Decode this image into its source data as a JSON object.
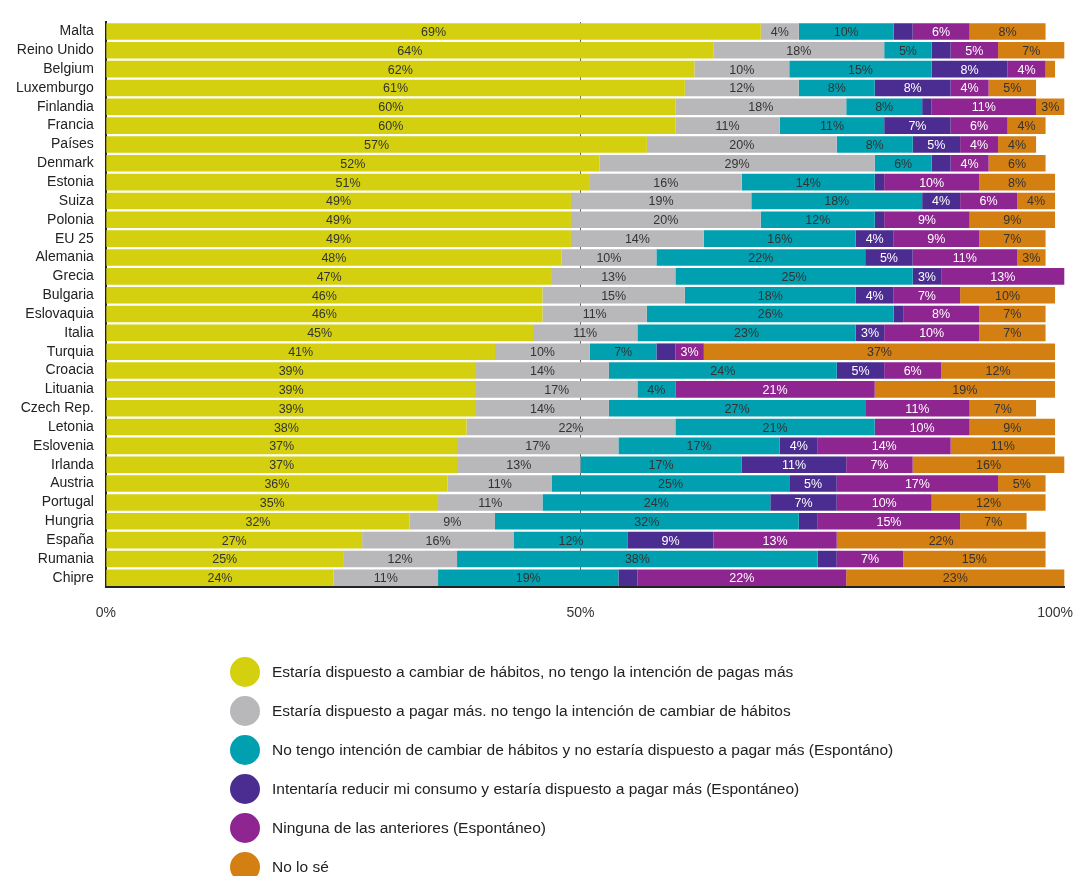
{
  "chart_data": {
    "type": "bar",
    "orientation": "horizontal",
    "stacked": true,
    "legend": "bottom",
    "grid": "x",
    "categories": [
      "Malta",
      "Reino Unido",
      "Belgium",
      "Luxemburgo",
      "Finlandia",
      "Francia",
      "Países",
      "Denmark",
      "Estonia",
      "Suiza",
      "Polonia",
      "EU 25",
      "Alemania",
      "Grecia",
      "Bulgaria",
      "Eslovaquia",
      "Italia",
      "Turquia",
      "Croacia",
      "Lituania",
      "Czech Rep.",
      "Letonia",
      "Eslovenia",
      "Irlanda",
      "Austria",
      "Portugal",
      "Hungria",
      "España",
      "Rumania",
      "Chipre"
    ],
    "xlim": [
      0,
      101
    ],
    "xticks": [
      {
        "value": 0,
        "label": "0%"
      },
      {
        "value": 50,
        "label": "50%"
      },
      {
        "value": 100,
        "label": "100%"
      }
    ],
    "series": [
      {
        "name": "Estaría dispuesto a cambiar de hábitos, no tengo la intención de pagas más",
        "color": "#d4d00f",
        "values": [
          69,
          64,
          62,
          61,
          60,
          60,
          57,
          52,
          51,
          49,
          49,
          49,
          48,
          47,
          46,
          46,
          45,
          41,
          39,
          39,
          39,
          38,
          37,
          37,
          36,
          35,
          32,
          27,
          25,
          24
        ],
        "value_labels": [
          "69%",
          "64%",
          "62%",
          "61%",
          "60%",
          "60%",
          "57%",
          "52%",
          "51%",
          "49%",
          "49%",
          "49%",
          "48%",
          "47%",
          "46%",
          "46%",
          "45%",
          "41%",
          "39%",
          "39%",
          "39%",
          "38%",
          "37%",
          "37%",
          "36%",
          "35%",
          "32%",
          "27%",
          "25%",
          "24%"
        ]
      },
      {
        "name": "Estaría dispuesto a pagar más. no tengo la intención de cambiar de hábitos",
        "color": "#b8b8bb",
        "values": [
          4,
          18,
          10,
          12,
          18,
          11,
          20,
          29,
          16,
          19,
          20,
          14,
          10,
          13,
          15,
          11,
          11,
          10,
          14,
          17,
          14,
          22,
          17,
          13,
          11,
          11,
          9,
          16,
          12,
          11
        ],
        "value_labels": [
          "4%",
          "18%",
          "10%",
          "12%",
          "18%",
          "11%",
          "20%",
          "29%",
          "16%",
          "19%",
          "20%",
          "14%",
          "10%",
          "13%",
          "15%",
          "11%",
          "11%",
          "10%",
          "14%",
          "17%",
          "14%",
          "22%",
          "17%",
          "13%",
          "11%",
          "11%",
          "9%",
          "16%",
          "12%",
          "11%"
        ]
      },
      {
        "name": "No tengo intención de cambiar de hábitos y no estaría dispuesto a pagar más (Espontáno)",
        "color": "#00a0b0",
        "values": [
          10,
          5,
          15,
          8,
          8,
          11,
          8,
          6,
          14,
          18,
          12,
          16,
          22,
          25,
          18,
          26,
          23,
          7,
          24,
          4,
          27,
          21,
          17,
          17,
          25,
          24,
          32,
          12,
          38,
          19
        ],
        "value_labels": [
          "10%",
          "5%",
          "15%",
          "8%",
          "8%",
          "11%",
          "8%",
          "6%",
          "14%",
          "18%",
          "12%",
          "16%",
          "22%",
          "25%",
          "18%",
          "26%",
          "23%",
          "7%",
          "24%",
          "4%",
          "27%",
          "21%",
          "17%",
          "17%",
          "25%",
          "24%",
          "32%",
          "12%",
          "38%",
          "19%"
        ]
      },
      {
        "name": "Intentaría reducir mi consumo y estaría dispuesto a pagar más (Espontáneo)",
        "color": "#4b2d91",
        "values": [
          2,
          2,
          8,
          8,
          1,
          7,
          5,
          2,
          1,
          4,
          1,
          4,
          5,
          3,
          4,
          1,
          3,
          2,
          5,
          null,
          null,
          null,
          4,
          11,
          5,
          7,
          2,
          9,
          2,
          2
        ],
        "value_labels": [
          null,
          null,
          "8%",
          "8%",
          null,
          "7%",
          "5%",
          null,
          null,
          "4%",
          null,
          "4%",
          "5%",
          "3%",
          "4%",
          null,
          "3%",
          null,
          "5%",
          null,
          null,
          null,
          "4%",
          "11%",
          "5%",
          "7%",
          null,
          "9%",
          null,
          null
        ]
      },
      {
        "name": "Ninguna de las anteriores (Espontáneo)",
        "color": "#8e2590",
        "values": [
          6,
          5,
          4,
          4,
          11,
          6,
          4,
          4,
          10,
          6,
          9,
          9,
          11,
          13,
          7,
          8,
          10,
          3,
          6,
          21,
          11,
          10,
          14,
          7,
          17,
          10,
          15,
          13,
          7,
          22
        ],
        "value_labels": [
          "6%",
          "5%",
          "4%",
          "4%",
          "11%",
          "6%",
          "4%",
          "4%",
          "10%",
          "6%",
          "9%",
          "9%",
          "11%",
          "13%",
          "7%",
          "8%",
          "10%",
          "3%",
          "6%",
          "21%",
          "11%",
          "10%",
          "14%",
          "7%",
          "17%",
          "10%",
          "15%",
          "13%",
          "7%",
          "22%"
        ]
      },
      {
        "name": "No lo sé",
        "color": "#d47f12",
        "values": [
          8,
          7,
          1,
          5,
          3,
          4,
          4,
          6,
          8,
          4,
          9,
          7,
          3,
          null,
          10,
          7,
          7,
          37,
          12,
          19,
          7,
          9,
          11,
          16,
          5,
          12,
          7,
          22,
          15,
          23
        ],
        "value_labels": [
          "8%",
          "7%",
          null,
          "5%",
          "3%",
          "4%",
          "4%",
          "6%",
          "8%",
          "4%",
          "9%",
          "7%",
          "3%",
          null,
          "10%",
          "7%",
          "7%",
          "37%",
          "12%",
          "19%",
          "7%",
          "9%",
          "11%",
          "16%",
          "5%",
          "12%",
          "7%",
          "22%",
          "15%",
          "23%"
        ]
      }
    ]
  }
}
